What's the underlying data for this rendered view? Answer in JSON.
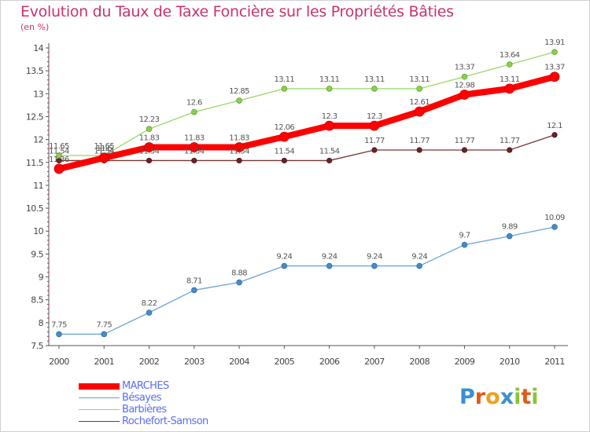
{
  "title": "Evolution du Taux de Taxe Foncière sur les Propriétés Bâties",
  "subtitle": "(en %)",
  "logo": {
    "letters": [
      "P",
      "r",
      "o",
      "x",
      "i",
      "t",
      "i"
    ],
    "colors": [
      "#3a8fd0",
      "#e05a1a",
      "#f0a020",
      "#3a8fd0",
      "#8cc43a",
      "#e05a1a",
      "#8cc43a"
    ]
  },
  "chart_data": {
    "type": "line",
    "x": [
      "2000",
      "2001",
      "2002",
      "2003",
      "2004",
      "2005",
      "2006",
      "2007",
      "2008",
      "2009",
      "2010",
      "2011"
    ],
    "ylim": [
      7.5,
      14
    ],
    "yticks": [
      "7.5",
      "8",
      "8.5",
      "9",
      "9.5",
      "10",
      "10.5",
      "11",
      "11.5",
      "12",
      "12.5",
      "13",
      "13.5",
      "14"
    ],
    "grid": false,
    "legend_position": "bottom-left",
    "series": [
      {
        "name": "MARCHES",
        "color": "#ff0000",
        "values": [
          11.36,
          11.6,
          11.83,
          11.83,
          11.83,
          12.06,
          12.3,
          12.3,
          12.61,
          12.98,
          13.11,
          13.37
        ],
        "labels": [
          "11.36",
          "11.6",
          "11.83",
          "11.83",
          "11.83",
          "12.06",
          "12.3",
          "12.3",
          "12.61",
          "12.98",
          "13.11",
          "13.37"
        ]
      },
      {
        "name": "Bésayes",
        "color": "#5b9bd5",
        "values": [
          7.75,
          7.75,
          8.22,
          8.71,
          8.88,
          9.24,
          9.24,
          9.24,
          9.24,
          9.7,
          9.89,
          10.09
        ],
        "labels": [
          "7.75",
          "7.75",
          "8.22",
          "8.71",
          "8.88",
          "9.24",
          "9.24",
          "9.24",
          "9.24",
          "9.7",
          "9.89",
          "10.09"
        ]
      },
      {
        "name": "Barbières",
        "color": "#8fd14f",
        "values": [
          11.65,
          11.65,
          12.23,
          12.6,
          12.85,
          13.11,
          13.11,
          13.11,
          13.11,
          13.37,
          13.64,
          13.91
        ],
        "labels": [
          "11.65",
          "11.65",
          "12.23",
          "12.6",
          "12.85",
          "13.11",
          "13.11",
          "13.11",
          "13.11",
          "13.37",
          "13.64",
          "13.91"
        ]
      },
      {
        "name": "Rochefort-Samson",
        "color": "#8b3a3a",
        "values": [
          11.54,
          11.54,
          11.54,
          11.54,
          11.54,
          11.54,
          11.54,
          11.77,
          11.77,
          11.77,
          11.77,
          12.1
        ],
        "labels": [
          "11.54",
          "11.54",
          "11.54",
          "11.54",
          "11.54",
          "11.54",
          "11.54",
          "11.77",
          "11.77",
          "11.77",
          "11.77",
          "12.1"
        ]
      }
    ]
  }
}
